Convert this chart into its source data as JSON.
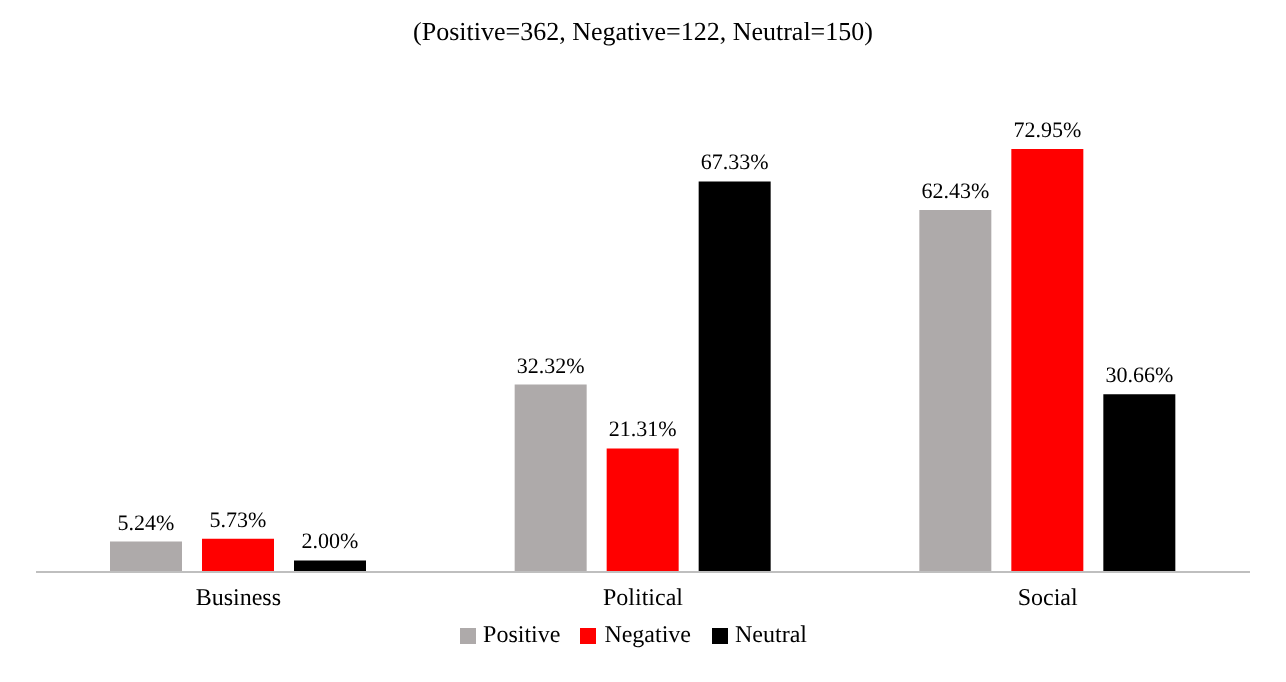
{
  "chart_data": {
    "type": "bar",
    "title": "(Positive=362, Negative=122, Neutral=150)",
    "categories": [
      "Business",
      "Political",
      "Social"
    ],
    "series": [
      {
        "name": "Positive",
        "color": "#aeaaaa",
        "values": [
          5.24,
          32.32,
          62.43
        ],
        "value_labels": [
          "5.24%",
          "32.32%",
          "62.43%"
        ]
      },
      {
        "name": "Negative",
        "color": "#ff0000",
        "values": [
          5.73,
          21.31,
          72.95
        ],
        "value_labels": [
          "5.73%",
          "21.31%",
          "72.95%"
        ]
      },
      {
        "name": "Neutral",
        "color": "#000000",
        "values": [
          2.0,
          67.33,
          30.66
        ],
        "value_labels": [
          "2.00%",
          "67.33%",
          "30.66%"
        ]
      }
    ],
    "legend": "bottom",
    "grid": false
  }
}
